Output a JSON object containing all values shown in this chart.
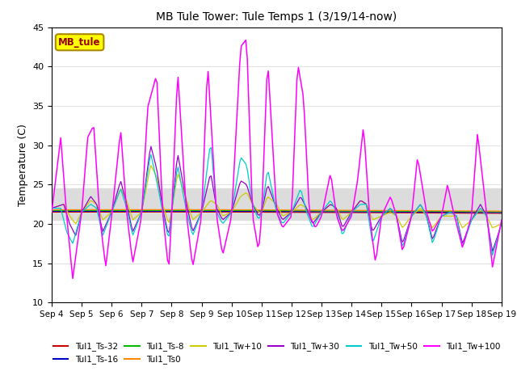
{
  "title": "MB Tule Tower: Tule Temps 1 (3/19/14-now)",
  "ylabel": "Temperature (C)",
  "ylim": [
    10,
    45
  ],
  "yticks": [
    10,
    15,
    20,
    25,
    30,
    35,
    40,
    45
  ],
  "xtick_positions": [
    0,
    1,
    2,
    3,
    4,
    5,
    6,
    7,
    8,
    9,
    10,
    11,
    12,
    13,
    14,
    15
  ],
  "xtick_labels": [
    "Sep 4",
    "Sep 5",
    "Sep 6",
    "Sep 7",
    "Sep 8",
    "Sep 9",
    "Sep 10",
    "Sep 11",
    "Sep 12",
    "Sep 13",
    "Sep 14",
    "Sep 15",
    "Sep 16",
    "Sep 17",
    "Sep 18",
    "Sep 19"
  ],
  "shade_band": [
    20.5,
    24.5
  ],
  "shade_color": "#dcdcdc",
  "legend_label": "MB_tule",
  "legend_bg": "#ffff00",
  "legend_border": "#aa8800",
  "series": [
    {
      "name": "Tul1_Ts-32",
      "color": "#cc0000",
      "lw": 0.8,
      "values": [
        21.5,
        21.4,
        21.3,
        21.3,
        21.3,
        21.2,
        21.2,
        21.1,
        21.1,
        21.0,
        21.0,
        21.0,
        21.0,
        20.9,
        20.9,
        20.8,
        20.8,
        20.8,
        20.8,
        20.7,
        20.7,
        20.6,
        20.6,
        20.6,
        20.6,
        20.5,
        20.5,
        20.5,
        20.5,
        20.5,
        20.4,
        20.4,
        20.4,
        20.3,
        20.3,
        20.3,
        20.2,
        20.2,
        20.2,
        20.2,
        20.1,
        20.1,
        20.1,
        20.0,
        20.0,
        20.0,
        20.0,
        20.0,
        20.0,
        20.0,
        20.0,
        20.0,
        20.0,
        20.0,
        20.0,
        20.0,
        20.0,
        20.0,
        20.0,
        20.0,
        20.0,
        20.0,
        20.0,
        20.0,
        20.0,
        20.0,
        20.0,
        20.0,
        20.0,
        20.0,
        20.0,
        20.0,
        20.0,
        20.0,
        20.0,
        20.0,
        20.0,
        20.0,
        20.0,
        20.0,
        20.0,
        20.0,
        20.0,
        20.0,
        20.0,
        20.0,
        20.0,
        20.0,
        20.0,
        20.0,
        20.0,
        20.0,
        20.0,
        20.0,
        20.0,
        20.0,
        20.0,
        20.0,
        20.0,
        20.0,
        20.0,
        20.0,
        20.0,
        20.0,
        20.0,
        20.0,
        20.0,
        20.0,
        20.0,
        20.0,
        20.0,
        20.0,
        20.0,
        20.0,
        20.0,
        20.0,
        20.0,
        20.0,
        20.0,
        20.0,
        20.0,
        20.0,
        20.0,
        20.0,
        20.0,
        20.0,
        20.0,
        20.0,
        20.0,
        20.0,
        20.0,
        20.0,
        20.0,
        20.0,
        20.0,
        20.0,
        20.0,
        20.0,
        20.0,
        20.0,
        20.0,
        20.0,
        20.0,
        20.0,
        20.0,
        20.0,
        20.0,
        20.0,
        20.0
      ]
    },
    {
      "name": "Tul1_Ts-16",
      "color": "#0000cc",
      "lw": 0.8,
      "values": [
        21.7,
        21.6,
        21.5,
        21.5,
        21.4,
        21.4,
        21.3,
        21.2,
        21.2,
        21.1,
        21.1,
        21.1,
        21.0,
        21.0,
        20.9,
        20.9,
        20.9,
        20.8,
        20.8,
        20.8,
        20.7,
        20.7,
        20.6,
        20.6,
        20.6,
        20.6,
        20.5,
        20.5,
        20.5,
        20.5,
        20.4,
        20.4,
        20.4,
        20.3,
        20.3,
        20.3,
        20.3,
        20.2,
        20.2,
        20.2,
        20.2,
        20.1,
        20.1,
        20.1,
        20.0,
        20.0,
        20.0,
        20.0,
        20.0,
        20.0,
        20.0,
        20.0,
        20.0,
        20.0,
        20.0,
        20.0,
        20.0,
        20.0,
        20.0,
        20.0,
        20.0,
        20.0,
        20.0,
        20.0,
        20.0,
        20.0,
        20.0,
        20.0,
        20.0,
        20.0,
        20.0,
        20.0,
        20.0,
        20.0,
        20.0,
        20.0,
        20.0,
        20.0,
        20.0,
        20.0,
        20.0,
        20.0,
        20.0,
        20.0,
        20.0,
        20.0,
        20.0,
        20.0,
        20.0,
        20.0,
        20.0,
        20.0,
        20.0,
        20.0,
        20.0,
        20.0,
        20.0,
        20.0,
        20.0,
        20.0,
        20.0,
        20.0,
        20.0,
        20.0,
        20.0,
        20.0,
        20.0,
        20.0,
        20.0,
        20.0,
        20.0,
        20.0,
        20.0,
        20.0,
        20.0,
        20.0,
        20.0,
        20.0,
        20.0,
        20.0,
        20.0,
        20.0,
        20.0,
        20.0,
        20.0,
        20.0,
        20.0,
        20.0,
        20.0,
        20.0,
        20.0,
        20.0,
        20.0,
        20.0,
        20.0,
        20.0,
        20.0,
        20.0,
        20.0,
        20.0,
        20.0,
        20.0,
        20.0,
        20.0,
        20.0,
        20.0,
        20.0,
        20.0,
        20.0
      ]
    },
    {
      "name": "Tul1_Ts-8",
      "color": "#00bb00",
      "lw": 0.8,
      "values": [
        21.9,
        21.8,
        21.7,
        21.7,
        21.6,
        21.6,
        21.5,
        21.4,
        21.4,
        21.3,
        21.3,
        21.3,
        21.2,
        21.2,
        21.1,
        21.1,
        21.1,
        21.0,
        21.0,
        21.0,
        20.9,
        20.9,
        20.8,
        20.8,
        20.8,
        20.8,
        20.7,
        20.7,
        20.7,
        20.7,
        20.6,
        20.6,
        20.6,
        20.5,
        20.5,
        20.5,
        20.5,
        20.4,
        20.4,
        20.4,
        20.4,
        20.3,
        20.3,
        20.3,
        20.2,
        20.2,
        20.2,
        20.2,
        20.2,
        20.1,
        20.1,
        20.1,
        20.1,
        20.1,
        20.0,
        20.0,
        20.0,
        20.0,
        20.0,
        20.0,
        20.0,
        20.0,
        20.0,
        20.0,
        20.0,
        20.0,
        20.0,
        20.0,
        20.0,
        20.0,
        20.0,
        20.0,
        20.0,
        20.0,
        20.0,
        20.0,
        20.0,
        20.0,
        20.0,
        20.0,
        20.0,
        20.0,
        20.0,
        20.0,
        20.0,
        20.0,
        20.0,
        20.0,
        20.0,
        20.0,
        20.0,
        20.0,
        20.0,
        20.0,
        20.0,
        20.0,
        20.0,
        20.0,
        20.0,
        20.0,
        20.0,
        20.0,
        20.0,
        20.0,
        20.0,
        20.0,
        20.0,
        20.0,
        20.0,
        20.0,
        20.0,
        20.0,
        20.0,
        20.0,
        20.0,
        20.0,
        20.0,
        20.0,
        20.0,
        20.0,
        20.0,
        20.0,
        20.0,
        20.0,
        20.0,
        20.0,
        20.0,
        20.0,
        20.0,
        20.0,
        20.0,
        20.0,
        20.0,
        20.0,
        20.0,
        20.0,
        20.0,
        20.0,
        20.0,
        20.0,
        20.0,
        20.0,
        20.0,
        20.0,
        20.0,
        20.0,
        20.0,
        20.0,
        20.0
      ]
    },
    {
      "name": "Tul1_Ts0",
      "color": "#ff8800",
      "lw": 0.8,
      "values": [
        22.1,
        22.0,
        21.9,
        21.9,
        21.8,
        21.8,
        21.7,
        21.6,
        21.6,
        21.5,
        21.5,
        21.5,
        21.4,
        21.4,
        21.3,
        21.3,
        21.3,
        21.2,
        21.2,
        21.2,
        21.1,
        21.1,
        21.0,
        21.0,
        21.0,
        21.0,
        20.9,
        20.9,
        20.9,
        20.9,
        20.8,
        20.8,
        20.8,
        20.7,
        20.7,
        20.7,
        20.7,
        20.6,
        20.6,
        20.6,
        20.6,
        20.5,
        20.5,
        20.5,
        20.4,
        20.4,
        20.4,
        20.4,
        20.4,
        20.3,
        20.3,
        20.3,
        20.3,
        20.3,
        20.2,
        20.2,
        20.2,
        20.2,
        20.2,
        20.2,
        20.1,
        20.1,
        20.1,
        20.1,
        20.1,
        20.1,
        20.0,
        20.0,
        20.0,
        20.0,
        20.0,
        20.0,
        20.0,
        20.0,
        20.0,
        20.0,
        20.0,
        20.0,
        20.0,
        20.0,
        20.0,
        20.0,
        20.0,
        20.0,
        20.0,
        20.0,
        20.0,
        20.0,
        20.0,
        20.0,
        20.0,
        20.0,
        20.0,
        20.0,
        20.0,
        20.0,
        20.0,
        20.0,
        20.0,
        20.0,
        20.0,
        20.0,
        20.0,
        20.0,
        20.0,
        20.0,
        20.0,
        20.0,
        20.0,
        20.0,
        20.0,
        20.0,
        20.0,
        20.0,
        20.0,
        20.0,
        20.0,
        20.0,
        20.0,
        20.0,
        20.0,
        20.0,
        20.0,
        20.0,
        20.0,
        20.0,
        20.0,
        20.0,
        20.0,
        20.0,
        20.0,
        20.0,
        20.0,
        20.0,
        20.0,
        20.0,
        20.0,
        20.0,
        20.0,
        20.0,
        20.0,
        20.0,
        20.0,
        20.0,
        20.0,
        20.0,
        20.0,
        20.0,
        20.0
      ]
    }
  ]
}
